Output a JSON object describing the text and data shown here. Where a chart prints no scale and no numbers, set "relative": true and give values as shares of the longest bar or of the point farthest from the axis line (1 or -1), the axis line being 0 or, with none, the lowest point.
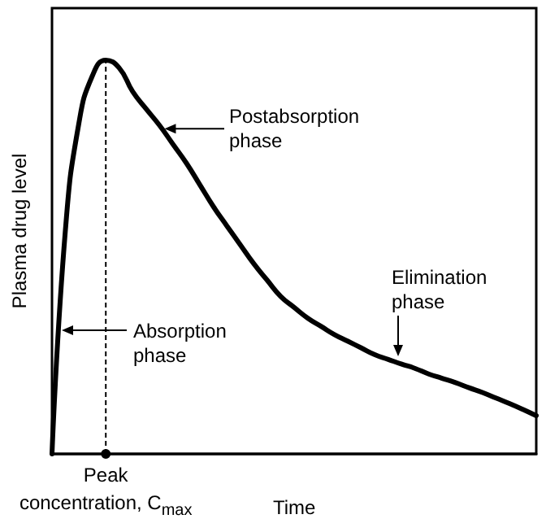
{
  "chart_data": {
    "type": "line",
    "relative": true,
    "ylabel": "Plasma drug level",
    "xlabel": "Time",
    "color": "#000000",
    "marker": "none",
    "line_style": "solid",
    "grid": false,
    "categories": [
      null,
      null,
      null,
      null,
      null,
      null,
      null,
      null,
      null,
      null,
      null,
      null,
      null,
      null,
      null,
      null,
      null,
      null,
      null,
      null,
      null,
      null,
      null,
      null,
      null,
      null,
      null,
      null,
      null,
      null,
      null,
      null,
      null,
      null,
      null,
      null,
      null
    ],
    "values": [
      0,
      0.57,
      0.84,
      0.96,
      1,
      0.98,
      0.92,
      0.876,
      0.834,
      0.786,
      0.738,
      0.683,
      0.628,
      0.579,
      0.531,
      0.483,
      0.441,
      0.4,
      0.372,
      0.345,
      0.324,
      0.303,
      0.286,
      0.269,
      0.252,
      0.24,
      0.228,
      0.217,
      0.203,
      0.192,
      0.181,
      0.168,
      0.156,
      0.142,
      0.128,
      0.113,
      0.097
    ],
    "annotations": [
      "Postabsorption phase",
      "Absorption phase",
      "Elimination phase",
      {
        "text": "Peak concentration, C$_{max}$",
        "y": 0
      }
    ]
  }
}
